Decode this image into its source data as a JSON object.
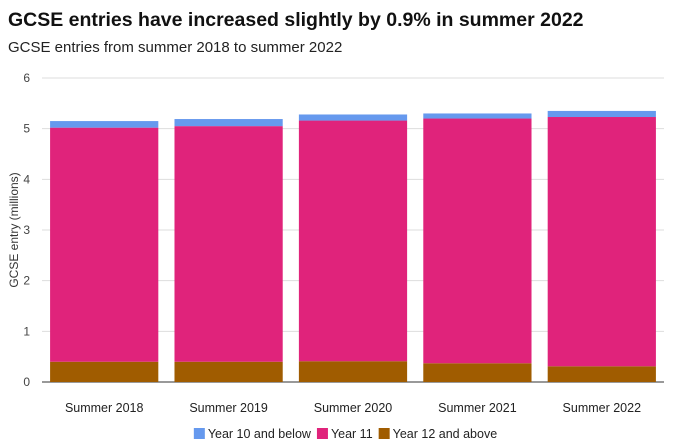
{
  "title": "GCSE entries have increased slightly by 0.9% in summer 2022",
  "subtitle": "GCSE entries from summer 2018 to summer 2022",
  "chart_data": {
    "type": "bar",
    "stacked": true,
    "categories": [
      "Summer 2018",
      "Summer 2019",
      "Summer 2020",
      "Summer 2021",
      "Summer 2022"
    ],
    "series": [
      {
        "name": "Year 12 and above",
        "color": "#a05c00",
        "values": [
          0.4,
          0.4,
          0.41,
          0.37,
          0.31
        ]
      },
      {
        "name": "Year 11",
        "color": "#e0237b",
        "values": [
          4.62,
          4.65,
          4.75,
          4.83,
          4.92
        ]
      },
      {
        "name": "Year 10 and below",
        "color": "#6699ee",
        "values": [
          0.13,
          0.14,
          0.12,
          0.1,
          0.12
        ]
      }
    ],
    "legend_order": [
      "Year 10 and below",
      "Year 11",
      "Year 12 and above"
    ],
    "title": "GCSE entries have increased slightly by 0.9% in summer 2022",
    "xlabel": "",
    "ylabel": "GCSE entry (millions)",
    "ylim": [
      0,
      6
    ],
    "yticks": [
      "0",
      "1",
      "2",
      "3",
      "4",
      "5",
      "6"
    ],
    "grid": true,
    "legend_position": "bottom-center"
  }
}
